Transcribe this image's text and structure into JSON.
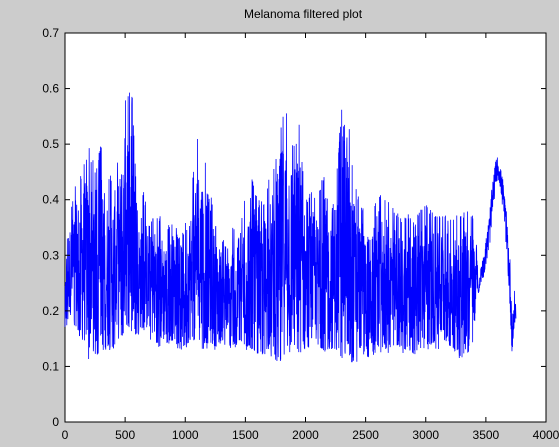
{
  "chart_data": {
    "type": "line",
    "title": "Melanoma filtered plot",
    "xlabel": "",
    "ylabel": "",
    "xlim": [
      0,
      4000
    ],
    "ylim": [
      0,
      0.7
    ],
    "xticks": [
      0,
      500,
      1000,
      1500,
      2000,
      2500,
      3000,
      3500,
      4000
    ],
    "yticks": [
      0,
      0.1,
      0.2,
      0.3,
      0.4,
      0.5,
      0.6,
      0.7
    ],
    "xtick_labels": [
      "0",
      "500",
      "1000",
      "1500",
      "2000",
      "2500",
      "3000",
      "3500",
      "4000"
    ],
    "ytick_labels": [
      "0",
      "0.1",
      "0.2",
      "0.3",
      "0.4",
      "0.5",
      "0.6",
      "0.7"
    ],
    "grid": false,
    "line_color": "#0000ff",
    "axes_background": "#ffffff",
    "figure_background": "#cccccc",
    "series": [
      {
        "x": [
          0,
          20,
          40,
          60,
          80,
          100,
          130,
          160,
          200,
          250,
          300,
          350,
          400,
          450,
          500,
          530,
          560,
          600,
          650,
          700,
          750,
          800,
          850,
          900,
          950,
          1000,
          1050,
          1100,
          1150,
          1200,
          1250,
          1300,
          1350,
          1400,
          1450,
          1500,
          1550,
          1600,
          1650,
          1700,
          1750,
          1800,
          1850,
          1900,
          1950,
          2000,
          2050,
          2100,
          2150,
          2200,
          2250,
          2300,
          2330,
          2360,
          2400,
          2450,
          2500,
          2550,
          2600,
          2650,
          2700,
          2750,
          2800,
          2850,
          2900,
          2950,
          3000,
          3050,
          3100,
          3150,
          3200,
          3250,
          3300,
          3350,
          3400,
          3420,
          3440,
          3460,
          3480,
          3500,
          3520,
          3540,
          3560,
          3580,
          3600,
          3620,
          3640,
          3660,
          3680,
          3700,
          3720,
          3740,
          3750
        ],
        "upper": [
          0.25,
          0.38,
          0.37,
          0.4,
          0.42,
          0.45,
          0.49,
          0.47,
          0.5,
          0.46,
          0.5,
          0.44,
          0.45,
          0.48,
          0.58,
          0.6,
          0.59,
          0.38,
          0.42,
          0.36,
          0.38,
          0.37,
          0.35,
          0.37,
          0.33,
          0.4,
          0.42,
          0.51,
          0.5,
          0.44,
          0.36,
          0.34,
          0.31,
          0.36,
          0.33,
          0.42,
          0.45,
          0.4,
          0.4,
          0.44,
          0.48,
          0.55,
          0.58,
          0.5,
          0.54,
          0.4,
          0.42,
          0.4,
          0.45,
          0.44,
          0.44,
          0.56,
          0.63,
          0.55,
          0.45,
          0.4,
          0.38,
          0.36,
          0.42,
          0.4,
          0.4,
          0.38,
          0.37,
          0.38,
          0.36,
          0.38,
          0.4,
          0.38,
          0.37,
          0.38,
          0.37,
          0.37,
          0.38,
          0.38,
          0.37,
          0.33,
          0.24,
          0.29,
          0.3,
          0.33,
          0.36,
          0.4,
          0.44,
          0.47,
          0.48,
          0.46,
          0.44,
          0.4,
          0.36,
          0.3,
          0.2,
          0.24,
          0.21
        ],
        "lower": [
          0.14,
          0.18,
          0.19,
          0.18,
          0.17,
          0.16,
          0.15,
          0.13,
          0.11,
          0.12,
          0.12,
          0.12,
          0.12,
          0.14,
          0.15,
          0.16,
          0.15,
          0.15,
          0.16,
          0.15,
          0.14,
          0.13,
          0.14,
          0.14,
          0.13,
          0.13,
          0.14,
          0.14,
          0.13,
          0.13,
          0.13,
          0.14,
          0.13,
          0.13,
          0.14,
          0.13,
          0.12,
          0.12,
          0.11,
          0.12,
          0.11,
          0.1,
          0.12,
          0.13,
          0.11,
          0.11,
          0.14,
          0.13,
          0.12,
          0.12,
          0.12,
          0.11,
          0.12,
          0.12,
          0.09,
          0.12,
          0.12,
          0.11,
          0.13,
          0.12,
          0.12,
          0.13,
          0.12,
          0.13,
          0.12,
          0.13,
          0.13,
          0.13,
          0.13,
          0.13,
          0.13,
          0.12,
          0.11,
          0.12,
          0.14,
          0.24,
          0.23,
          0.25,
          0.26,
          0.28,
          0.3,
          0.33,
          0.38,
          0.42,
          0.44,
          0.42,
          0.38,
          0.34,
          0.28,
          0.2,
          0.11,
          0.17,
          0.18
        ]
      }
    ]
  }
}
